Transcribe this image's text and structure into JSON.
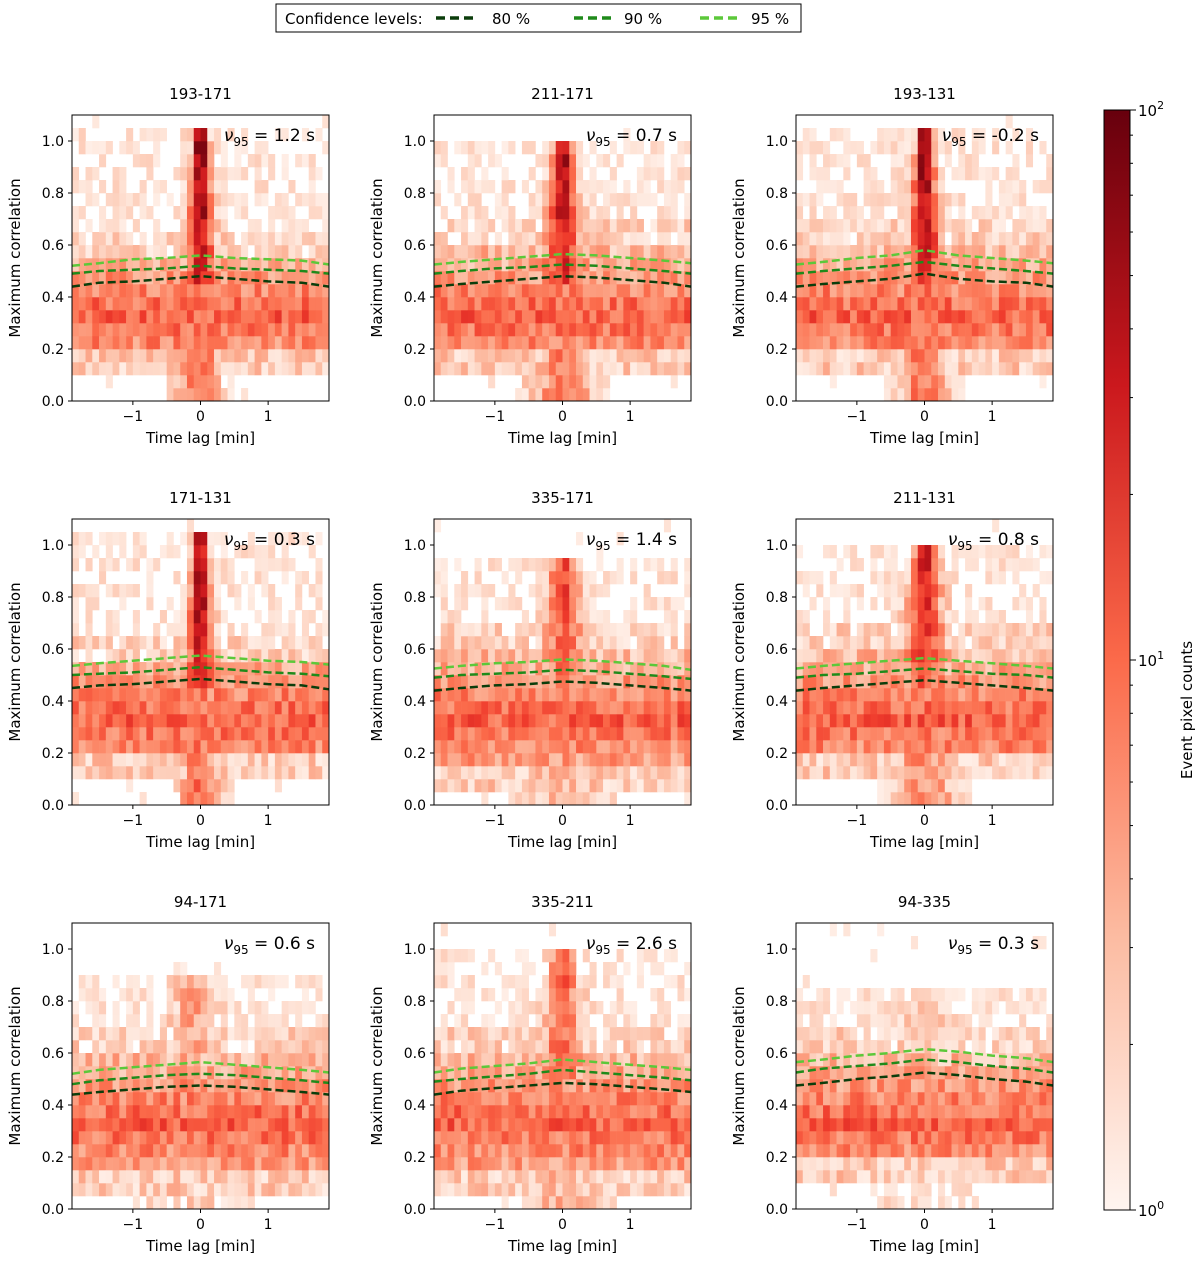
{
  "figure": {
    "legend": {
      "title": "Confidence levels:",
      "entries": [
        {
          "label": "80 %",
          "color": "#0b3d0b"
        },
        {
          "label": "90 %",
          "color": "#1f8a1a"
        },
        {
          "label": "95 %",
          "color": "#5cc83a"
        }
      ]
    },
    "colorbar": {
      "label": "Event pixel counts",
      "scale": "log",
      "range": [
        1,
        100
      ],
      "ticks": [
        {
          "value": 1,
          "base": "10",
          "exp": "0"
        },
        {
          "value": 10,
          "base": "10",
          "exp": "1"
        },
        {
          "value": 100,
          "base": "10",
          "exp": "2"
        }
      ],
      "minor_ticks": [
        2,
        3,
        4,
        5,
        6,
        7,
        8,
        9,
        20,
        30,
        40,
        50,
        60,
        70,
        80,
        90
      ]
    }
  },
  "chart_data": [
    {
      "type": "heatmap",
      "title": "193-171",
      "annotation": {
        "symbol": "ν",
        "sub": "95",
        "text": " =  1.2 s"
      },
      "xlabel": "Time lag [min]",
      "ylabel": "Maximum correlation",
      "xlim": [
        -1.9,
        1.9
      ],
      "ylim": [
        0,
        1.1
      ],
      "xticks": [
        -1,
        0,
        1
      ],
      "xtick_labels": [
        "−1",
        "0",
        "1"
      ],
      "yticks": [
        0,
        0.2,
        0.4,
        0.6,
        0.8,
        1.0
      ],
      "ytick_labels": [
        "0.0",
        "0.2",
        "0.4",
        "0.6",
        "0.8",
        "1.0"
      ],
      "peak_lag": 0.0,
      "peak_corr": 1.0,
      "peak_strength": 1.0,
      "peak_width": 0.1,
      "lower_edge": 0.2,
      "upper_band": 0.55,
      "confidence_lines": {
        "x": [
          -1.9,
          -1.5,
          -1.0,
          -0.5,
          0.0,
          0.5,
          1.0,
          1.5,
          1.9
        ],
        "p80": [
          0.44,
          0.455,
          0.46,
          0.47,
          0.48,
          0.47,
          0.46,
          0.455,
          0.44
        ],
        "p90": [
          0.49,
          0.5,
          0.505,
          0.51,
          0.52,
          0.51,
          0.505,
          0.5,
          0.49
        ],
        "p95": [
          0.52,
          0.53,
          0.545,
          0.55,
          0.56,
          0.55,
          0.545,
          0.54,
          0.525
        ]
      }
    },
    {
      "type": "heatmap",
      "title": "211-171",
      "annotation": {
        "symbol": "ν",
        "sub": "95",
        "text": " =  0.7 s"
      },
      "xlabel": "Time lag [min]",
      "ylabel": "Maximum correlation",
      "xlim": [
        -1.9,
        1.9
      ],
      "ylim": [
        0,
        1.1
      ],
      "xticks": [
        -1,
        0,
        1
      ],
      "xtick_labels": [
        "−1",
        "0",
        "1"
      ],
      "yticks": [
        0,
        0.2,
        0.4,
        0.6,
        0.8,
        1.0
      ],
      "ytick_labels": [
        "0.0",
        "0.2",
        "0.4",
        "0.6",
        "0.8",
        "1.0"
      ],
      "peak_lag": 0.0,
      "peak_corr": 0.95,
      "peak_strength": 0.85,
      "peak_width": 0.15,
      "lower_edge": 0.2,
      "upper_band": 0.6,
      "confidence_lines": {
        "x": [
          -1.9,
          -1.5,
          -1.0,
          -0.5,
          0.0,
          0.5,
          1.0,
          1.5,
          1.9
        ],
        "p80": [
          0.44,
          0.45,
          0.46,
          0.47,
          0.48,
          0.475,
          0.465,
          0.455,
          0.44
        ],
        "p90": [
          0.49,
          0.5,
          0.51,
          0.515,
          0.525,
          0.52,
          0.51,
          0.5,
          0.49
        ],
        "p95": [
          0.525,
          0.535,
          0.545,
          0.555,
          0.565,
          0.56,
          0.55,
          0.54,
          0.53
        ]
      }
    },
    {
      "type": "heatmap",
      "title": "193-131",
      "annotation": {
        "symbol": "ν",
        "sub": "95",
        "text": " =  -0.2 s"
      },
      "xlabel": "Time lag [min]",
      "ylabel": "Maximum correlation",
      "xlim": [
        -1.9,
        1.9
      ],
      "ylim": [
        0,
        1.1
      ],
      "xticks": [
        -1,
        0,
        1
      ],
      "xtick_labels": [
        "−1",
        "0",
        "1"
      ],
      "yticks": [
        0,
        0.2,
        0.4,
        0.6,
        0.8,
        1.0
      ],
      "ytick_labels": [
        "0.0",
        "0.2",
        "0.4",
        "0.6",
        "0.8",
        "1.0"
      ],
      "peak_lag": 0.0,
      "peak_corr": 1.0,
      "peak_strength": 0.95,
      "peak_width": 0.12,
      "lower_edge": 0.2,
      "upper_band": 0.6,
      "confidence_lines": {
        "x": [
          -1.9,
          -1.5,
          -1.0,
          -0.5,
          0.0,
          0.5,
          1.0,
          1.5,
          1.9
        ],
        "p80": [
          0.44,
          0.45,
          0.46,
          0.47,
          0.49,
          0.47,
          0.46,
          0.455,
          0.44
        ],
        "p90": [
          0.49,
          0.5,
          0.51,
          0.52,
          0.535,
          0.52,
          0.51,
          0.5,
          0.49
        ],
        "p95": [
          0.525,
          0.535,
          0.55,
          0.56,
          0.58,
          0.56,
          0.55,
          0.54,
          0.53
        ]
      }
    },
    {
      "type": "heatmap",
      "title": "171-131",
      "annotation": {
        "symbol": "ν",
        "sub": "95",
        "text": " =  0.3 s"
      },
      "xlabel": "Time lag [min]",
      "ylabel": "Maximum correlation",
      "xlim": [
        -1.9,
        1.9
      ],
      "ylim": [
        0,
        1.1
      ],
      "xticks": [
        -1,
        0,
        1
      ],
      "xtick_labels": [
        "−1",
        "0",
        "1"
      ],
      "yticks": [
        0,
        0.2,
        0.4,
        0.6,
        0.8,
        1.0
      ],
      "ytick_labels": [
        "0.0",
        "0.2",
        "0.4",
        "0.6",
        "0.8",
        "1.0"
      ],
      "peak_lag": 0.0,
      "peak_corr": 1.0,
      "peak_strength": 0.95,
      "peak_width": 0.1,
      "lower_edge": 0.2,
      "upper_band": 0.55,
      "confidence_lines": {
        "x": [
          -1.9,
          -1.5,
          -1.0,
          -0.5,
          0.0,
          0.5,
          1.0,
          1.5,
          1.9
        ],
        "p80": [
          0.45,
          0.46,
          0.465,
          0.475,
          0.485,
          0.475,
          0.465,
          0.46,
          0.445
        ],
        "p90": [
          0.5,
          0.505,
          0.51,
          0.52,
          0.53,
          0.52,
          0.51,
          0.505,
          0.495
        ],
        "p95": [
          0.535,
          0.545,
          0.555,
          0.565,
          0.575,
          0.565,
          0.555,
          0.55,
          0.54
        ]
      }
    },
    {
      "type": "heatmap",
      "title": "335-171",
      "annotation": {
        "symbol": "ν",
        "sub": "95",
        "text": " =  1.4 s"
      },
      "xlabel": "Time lag [min]",
      "ylabel": "Maximum correlation",
      "xlim": [
        -1.9,
        1.9
      ],
      "ylim": [
        0,
        1.1
      ],
      "xticks": [
        -1,
        0,
        1
      ],
      "xtick_labels": [
        "−1",
        "0",
        "1"
      ],
      "yticks": [
        0,
        0.2,
        0.4,
        0.6,
        0.8,
        1.0
      ],
      "ytick_labels": [
        "0.0",
        "0.2",
        "0.4",
        "0.6",
        "0.8",
        "1.0"
      ],
      "peak_lag": 0.0,
      "peak_corr": 0.9,
      "peak_strength": 0.55,
      "peak_width": 0.2,
      "lower_edge": 0.15,
      "upper_band": 0.6,
      "confidence_lines": {
        "x": [
          -1.9,
          -1.5,
          -1.0,
          -0.5,
          0.0,
          0.5,
          1.0,
          1.5,
          1.9
        ],
        "p80": [
          0.44,
          0.45,
          0.46,
          0.465,
          0.475,
          0.47,
          0.46,
          0.45,
          0.44
        ],
        "p90": [
          0.49,
          0.5,
          0.505,
          0.51,
          0.52,
          0.515,
          0.505,
          0.495,
          0.485
        ],
        "p95": [
          0.525,
          0.535,
          0.545,
          0.55,
          0.56,
          0.555,
          0.545,
          0.535,
          0.52
        ]
      }
    },
    {
      "type": "heatmap",
      "title": "211-131",
      "annotation": {
        "symbol": "ν",
        "sub": "95",
        "text": " =  0.8 s"
      },
      "xlabel": "Time lag [min]",
      "ylabel": "Maximum correlation",
      "xlim": [
        -1.9,
        1.9
      ],
      "ylim": [
        0,
        1.1
      ],
      "xticks": [
        -1,
        0,
        1
      ],
      "xtick_labels": [
        "−1",
        "0",
        "1"
      ],
      "yticks": [
        0,
        0.2,
        0.4,
        0.6,
        0.8,
        1.0
      ],
      "ytick_labels": [
        "0.0",
        "0.2",
        "0.4",
        "0.6",
        "0.8",
        "1.0"
      ],
      "peak_lag": 0.0,
      "peak_corr": 0.95,
      "peak_strength": 0.75,
      "peak_width": 0.17,
      "lower_edge": 0.2,
      "upper_band": 0.6,
      "confidence_lines": {
        "x": [
          -1.9,
          -1.5,
          -1.0,
          -0.5,
          0.0,
          0.5,
          1.0,
          1.5,
          1.9
        ],
        "p80": [
          0.44,
          0.45,
          0.46,
          0.47,
          0.48,
          0.47,
          0.46,
          0.45,
          0.44
        ],
        "p90": [
          0.49,
          0.5,
          0.505,
          0.515,
          0.525,
          0.515,
          0.505,
          0.5,
          0.49
        ],
        "p95": [
          0.525,
          0.535,
          0.545,
          0.555,
          0.565,
          0.555,
          0.545,
          0.535,
          0.525
        ]
      }
    },
    {
      "type": "heatmap",
      "title": "94-171",
      "annotation": {
        "symbol": "ν",
        "sub": "95",
        "text": " =  0.6 s"
      },
      "xlabel": "Time lag [min]",
      "ylabel": "Maximum correlation",
      "xlim": [
        -1.9,
        1.9
      ],
      "ylim": [
        0,
        1.1
      ],
      "xticks": [
        -1,
        0,
        1
      ],
      "xtick_labels": [
        "−1",
        "0",
        "1"
      ],
      "yticks": [
        0,
        0.2,
        0.4,
        0.6,
        0.8,
        1.0
      ],
      "ytick_labels": [
        "0.0",
        "0.2",
        "0.4",
        "0.6",
        "0.8",
        "1.0"
      ],
      "peak_lag": -0.1,
      "peak_corr": 0.85,
      "peak_strength": 0.3,
      "peak_width": 0.25,
      "lower_edge": 0.15,
      "upper_band": 0.6,
      "confidence_lines": {
        "x": [
          -1.9,
          -1.5,
          -1.0,
          -0.5,
          0.0,
          0.5,
          1.0,
          1.5,
          1.9
        ],
        "p80": [
          0.44,
          0.45,
          0.46,
          0.47,
          0.475,
          0.47,
          0.46,
          0.45,
          0.44
        ],
        "p90": [
          0.48,
          0.495,
          0.505,
          0.515,
          0.52,
          0.515,
          0.505,
          0.495,
          0.485
        ],
        "p95": [
          0.52,
          0.535,
          0.545,
          0.555,
          0.565,
          0.555,
          0.545,
          0.535,
          0.525
        ]
      }
    },
    {
      "type": "heatmap",
      "title": "335-211",
      "annotation": {
        "symbol": "ν",
        "sub": "95",
        "text": " =  2.6 s"
      },
      "xlabel": "Time lag [min]",
      "ylabel": "Maximum correlation",
      "xlim": [
        -1.9,
        1.9
      ],
      "ylim": [
        0,
        1.1
      ],
      "xticks": [
        -1,
        0,
        1
      ],
      "xtick_labels": [
        "−1",
        "0",
        "1"
      ],
      "yticks": [
        0,
        0.2,
        0.4,
        0.6,
        0.8,
        1.0
      ],
      "ytick_labels": [
        "0.0",
        "0.2",
        "0.4",
        "0.6",
        "0.8",
        "1.0"
      ],
      "peak_lag": 0.0,
      "peak_corr": 0.95,
      "peak_strength": 0.55,
      "peak_width": 0.18,
      "lower_edge": 0.15,
      "upper_band": 0.6,
      "confidence_lines": {
        "x": [
          -1.9,
          -1.5,
          -1.0,
          -0.5,
          0.0,
          0.5,
          1.0,
          1.5,
          1.9
        ],
        "p80": [
          0.44,
          0.455,
          0.465,
          0.475,
          0.485,
          0.48,
          0.47,
          0.46,
          0.45
        ],
        "p90": [
          0.49,
          0.5,
          0.51,
          0.52,
          0.535,
          0.525,
          0.515,
          0.505,
          0.495
        ],
        "p95": [
          0.525,
          0.54,
          0.55,
          0.56,
          0.575,
          0.565,
          0.555,
          0.545,
          0.535
        ]
      }
    },
    {
      "type": "heatmap",
      "title": "94-335",
      "annotation": {
        "symbol": "ν",
        "sub": "95",
        "text": " =  0.3 s"
      },
      "xlabel": "Time lag [min]",
      "ylabel": "Maximum correlation",
      "xlim": [
        -1.9,
        1.9
      ],
      "ylim": [
        0,
        1.1
      ],
      "xticks": [
        -1,
        0,
        1
      ],
      "xtick_labels": [
        "−1",
        "0",
        "1"
      ],
      "yticks": [
        0,
        0.2,
        0.4,
        0.6,
        0.8,
        1.0
      ],
      "ytick_labels": [
        "0.0",
        "0.2",
        "0.4",
        "0.6",
        "0.8",
        "1.0"
      ],
      "peak_lag": 0.0,
      "peak_corr": 0.8,
      "peak_strength": 0.2,
      "peak_width": 0.3,
      "lower_edge": 0.2,
      "upper_band": 0.62,
      "confidence_lines": {
        "x": [
          -1.9,
          -1.5,
          -1.0,
          -0.5,
          0.0,
          0.5,
          1.0,
          1.5,
          1.9
        ],
        "p80": [
          0.475,
          0.485,
          0.5,
          0.51,
          0.525,
          0.515,
          0.5,
          0.49,
          0.475
        ],
        "p90": [
          0.525,
          0.54,
          0.55,
          0.56,
          0.575,
          0.565,
          0.55,
          0.54,
          0.525
        ],
        "p95": [
          0.565,
          0.575,
          0.59,
          0.6,
          0.615,
          0.605,
          0.59,
          0.58,
          0.565
        ]
      }
    }
  ]
}
